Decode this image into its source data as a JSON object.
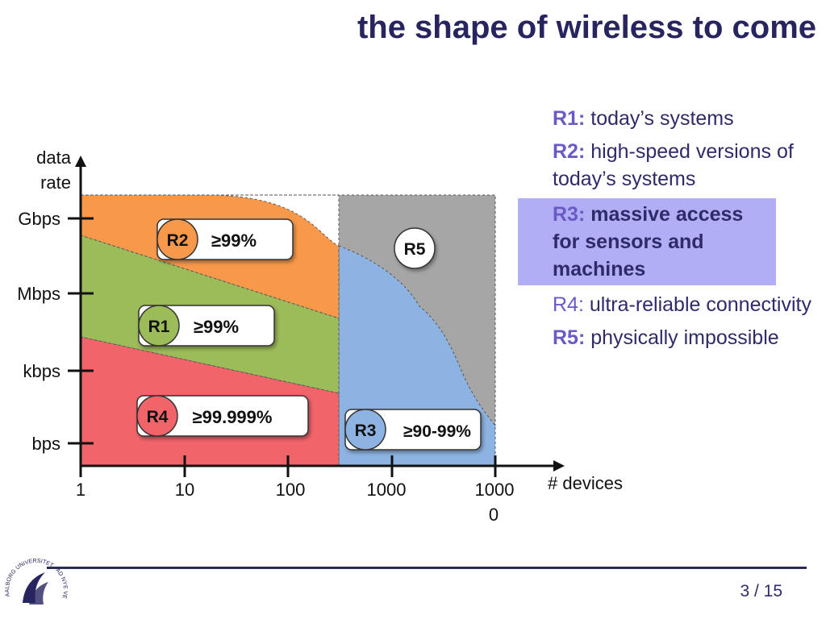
{
  "slide": {
    "title": "the shape of wireless to come",
    "page_number": "3 / 15"
  },
  "legend": [
    {
      "key": "R1:",
      "text": "today’s systems"
    },
    {
      "key": "R2:",
      "text": "high-speed versions of today’s systems"
    },
    {
      "key": "R3:",
      "text": "massive access for sensors and machines",
      "highlighted": true
    },
    {
      "key": "R4:",
      "text": "ultra-reliable connectivity"
    },
    {
      "key": "R5:",
      "text": "physically impossible"
    }
  ],
  "diagram": {
    "y_axis_label": [
      "data",
      "rate"
    ],
    "x_axis_label": "# devices",
    "y_ticks": [
      "Gbps",
      "Mbps",
      "kbps",
      "bps"
    ],
    "x_ticks": [
      {
        "lines": [
          "1"
        ]
      },
      {
        "lines": [
          "10"
        ]
      },
      {
        "lines": [
          "100"
        ]
      },
      {
        "lines": [
          "1000"
        ]
      },
      {
        "lines": [
          "1000",
          "0"
        ]
      }
    ],
    "regions": [
      {
        "id": "R5",
        "color": "#a6a6a6"
      },
      {
        "id": "R2",
        "reliability": "≥99%",
        "color": "#f7984a"
      },
      {
        "id": "R1",
        "reliability": "≥99%",
        "color": "#9cbb59"
      },
      {
        "id": "R4",
        "reliability": "≥99.999%",
        "color": "#f0646a"
      },
      {
        "id": "R3",
        "reliability": "≥90-99%",
        "color": "#8db3e2"
      }
    ]
  },
  "logo": {
    "text": "AALBORG UNIVERSITET · AD NYE VEJE"
  }
}
